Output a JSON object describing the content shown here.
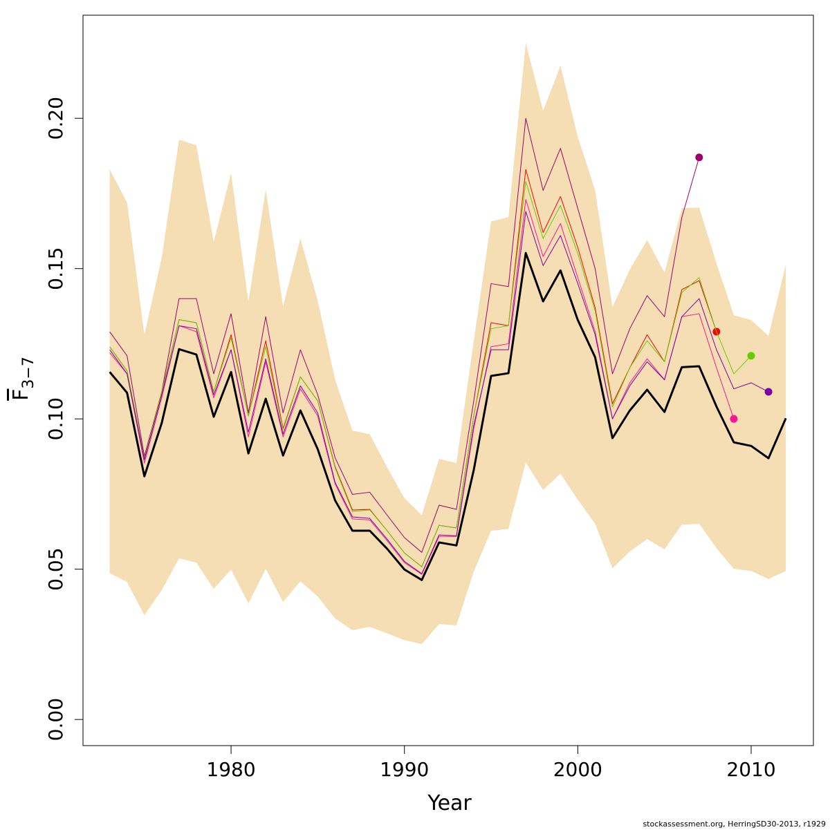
{
  "chart_data": {
    "type": "line",
    "xlabel": "Year",
    "ylabel": {
      "main": "F",
      "sub": "3−7"
    },
    "footer": "stockassessment.org, HerringSD30-2013, r1929",
    "xlim": [
      1971.46,
      2013.59
    ],
    "ylim": [
      -0.0087,
      0.2343
    ],
    "xticks": [
      1980,
      1990,
      2000,
      2010
    ],
    "yticks": [
      {
        "value": 0,
        "label": "0.00"
      },
      {
        "value": 0.05,
        "label": "0.05"
      },
      {
        "value": 0.1,
        "label": "0.10"
      },
      {
        "value": 0.15,
        "label": "0.15"
      },
      {
        "value": 0.2,
        "label": "0.20"
      }
    ],
    "x": [
      1973,
      1974,
      1975,
      1976,
      1977,
      1978,
      1979,
      1980,
      1981,
      1982,
      1983,
      1984,
      1985,
      1986,
      1987,
      1988,
      1989,
      1990,
      1991,
      1992,
      1993,
      1994,
      1995,
      1996,
      1997,
      1998,
      1999,
      2000,
      2001,
      2002,
      2003,
      2004,
      2005,
      2006,
      2007,
      2008,
      2009,
      2010,
      2011,
      2012
    ],
    "band": {
      "color": "#f5deb3",
      "upper": [
        0.183,
        0.172,
        0.128,
        0.1536,
        0.1929,
        0.191,
        0.1589,
        0.1818,
        0.1389,
        0.1763,
        0.1375,
        0.16,
        0.1393,
        0.1131,
        0.0961,
        0.0949,
        0.0839,
        0.0736,
        0.068,
        0.0867,
        0.0853,
        0.126,
        0.1657,
        0.1671,
        0.2251,
        0.2025,
        0.2175,
        0.1938,
        0.1761,
        0.1372,
        0.1497,
        0.1595,
        0.1487,
        0.1701,
        0.1703,
        0.1517,
        0.1345,
        0.1329,
        0.1276,
        0.1513
      ],
      "lower": [
        0.0487,
        0.0457,
        0.0347,
        0.043,
        0.0536,
        0.0522,
        0.0434,
        0.0499,
        0.0386,
        0.0501,
        0.0391,
        0.046,
        0.0409,
        0.0336,
        0.0297,
        0.0308,
        0.0287,
        0.0264,
        0.0251,
        0.0317,
        0.0313,
        0.0492,
        0.0628,
        0.0634,
        0.0855,
        0.0763,
        0.0818,
        0.0731,
        0.0651,
        0.0503,
        0.0559,
        0.06,
        0.0566,
        0.0648,
        0.0651,
        0.057,
        0.0501,
        0.0494,
        0.0467,
        0.0494
      ]
    },
    "series": [
      {
        "color": "#9b0070",
        "width": 1,
        "dot": true,
        "values": [
          0.129,
          0.121,
          0.0876,
          0.109,
          0.14,
          0.14,
          0.115,
          0.135,
          0.102,
          0.134,
          0.102,
          0.123,
          0.108,
          0.0871,
          0.0749,
          0.0756,
          0.068,
          0.0605,
          0.0556,
          0.0713,
          0.0699,
          0.106,
          0.145,
          0.144,
          0.2,
          0.176,
          0.19,
          0.17,
          0.15,
          0.115,
          0.13,
          0.141,
          0.134,
          0.167,
          0.187,
          null,
          null,
          null,
          null,
          null
        ]
      },
      {
        "color": "#ff0000",
        "width": 1,
        "dot": true,
        "values": [
          0.124,
          0.116,
          0.0869,
          0.109,
          0.133,
          0.132,
          0.109,
          0.128,
          0.101,
          0.126,
          0.0968,
          0.114,
          0.106,
          0.0841,
          0.0697,
          0.0699,
          0.0628,
          0.0554,
          0.0508,
          0.0646,
          0.0637,
          0.101,
          0.132,
          0.131,
          0.183,
          0.162,
          0.174,
          0.157,
          0.137,
          0.105,
          0.117,
          0.128,
          0.119,
          0.143,
          0.146,
          0.129,
          null,
          null,
          null,
          null
        ]
      },
      {
        "color": "#ff1493",
        "width": 1,
        "dot": true,
        "values": [
          0.122,
          0.115,
          0.0853,
          0.107,
          0.131,
          0.129,
          0.107,
          0.123,
          0.094,
          0.119,
          0.094,
          0.11,
          0.101,
          0.0784,
          0.0667,
          0.0664,
          0.0595,
          0.0522,
          0.0483,
          0.0609,
          0.0609,
          0.0968,
          0.124,
          0.125,
          0.173,
          0.154,
          0.165,
          0.147,
          0.129,
          0.1,
          0.112,
          0.12,
          0.113,
          0.134,
          0.135,
          0.117,
          0.1,
          null,
          null,
          null
        ]
      },
      {
        "color": "#66cc00",
        "width": 1,
        "dot": true,
        "values": [
          0.124,
          0.116,
          0.0869,
          0.109,
          0.133,
          0.132,
          0.109,
          0.127,
          0.101,
          0.124,
          0.0963,
          0.114,
          0.106,
          0.0837,
          0.0692,
          0.0697,
          0.0628,
          0.0554,
          0.0508,
          0.0646,
          0.0637,
          0.101,
          0.13,
          0.131,
          0.179,
          0.16,
          0.171,
          0.155,
          0.136,
          0.104,
          0.117,
          0.126,
          0.119,
          0.142,
          0.147,
          0.129,
          0.115,
          0.121,
          null,
          null
        ]
      },
      {
        "color": "#7a00a0",
        "width": 1,
        "dot": true,
        "values": [
          0.123,
          0.115,
          0.0864,
          0.108,
          0.131,
          0.13,
          0.108,
          0.123,
          0.0956,
          0.12,
          0.0949,
          0.111,
          0.102,
          0.0789,
          0.0674,
          0.0669,
          0.06,
          0.0526,
          0.0485,
          0.0614,
          0.0611,
          0.0979,
          0.123,
          0.123,
          0.169,
          0.151,
          0.161,
          0.145,
          0.128,
          0.1,
          0.111,
          0.119,
          0.113,
          0.134,
          0.14,
          0.123,
          0.11,
          0.112,
          0.109,
          null
        ]
      },
      {
        "color": "#000000",
        "width": 3,
        "dot": false,
        "values": [
          0.1156,
          0.1087,
          0.0809,
          0.0986,
          0.1232,
          0.1214,
          0.1007,
          0.1156,
          0.0885,
          0.1067,
          0.0878,
          0.1028,
          0.0899,
          0.0729,
          0.0628,
          0.0628,
          0.0568,
          0.0499,
          0.0464,
          0.0589,
          0.0579,
          0.083,
          0.1143,
          0.1152,
          0.1552,
          0.1391,
          0.1494,
          0.1329,
          0.1205,
          0.0936,
          0.1028,
          0.1097,
          0.1023,
          0.1172,
          0.1175,
          0.1041,
          0.0922,
          0.091,
          0.0869,
          0.1002
        ]
      }
    ]
  }
}
